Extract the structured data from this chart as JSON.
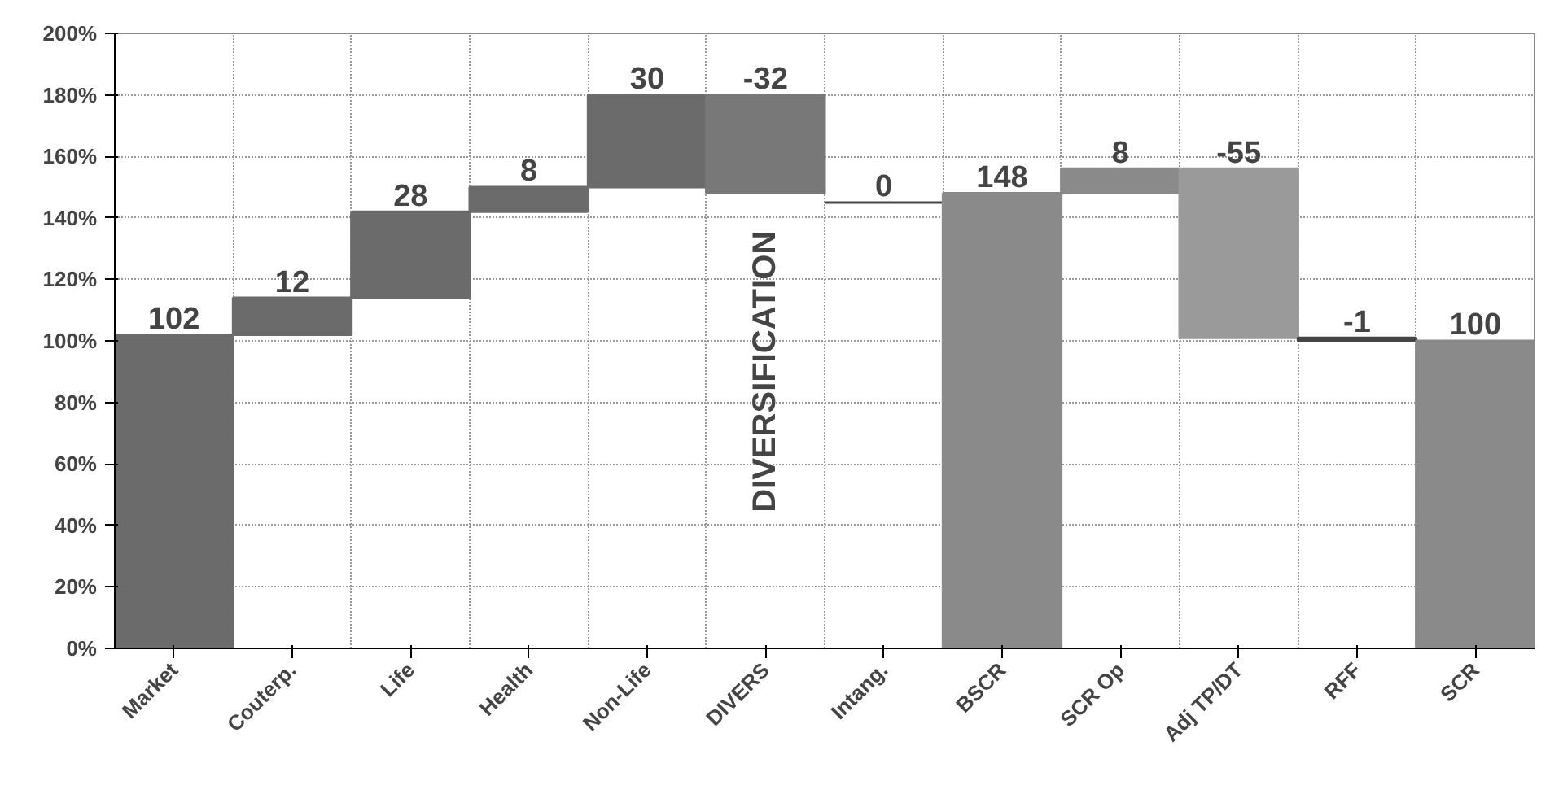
{
  "chart_data": {
    "type": "bar",
    "categories": [
      "Market",
      "Couterp.",
      "Life",
      "Health",
      "Non-Life",
      "DIVERS",
      "Intang.",
      "BSCR",
      "SCR Op",
      "Adj TP/DT",
      "RFF",
      "SCR"
    ],
    "values": [
      102,
      12,
      28,
      8,
      30,
      -32,
      0,
      148,
      8,
      -55,
      -1,
      100
    ],
    "base": [
      0,
      102,
      114,
      142,
      150,
      180,
      145,
      0,
      148,
      156,
      101,
      0
    ],
    "colors": [
      "#6b6b6b",
      "#6b6b6b",
      "#6b6b6b",
      "#6b6b6b",
      "#6b6b6b",
      "#787878",
      "#444444",
      "#8a8a8a",
      "#8a8a8a",
      "#9a9a9a",
      "#444444",
      "#8a8a8a"
    ],
    "data_labels": true,
    "ylim": [
      0,
      200
    ],
    "yticks": [
      {
        "value": 0,
        "label": "0%"
      },
      {
        "value": 20,
        "label": "20%"
      },
      {
        "value": 40,
        "label": "40%"
      },
      {
        "value": 60,
        "label": "60%"
      },
      {
        "value": 80,
        "label": "80%"
      },
      {
        "value": 100,
        "label": "100%"
      },
      {
        "value": 120,
        "label": "120%"
      },
      {
        "value": 140,
        "label": "140%"
      },
      {
        "value": 160,
        "label": "160%"
      },
      {
        "value": 180,
        "label": "180%"
      },
      {
        "value": 200,
        "label": "200%"
      }
    ],
    "grid": true,
    "annotations": [
      "DIVERSIFICATION"
    ]
  }
}
